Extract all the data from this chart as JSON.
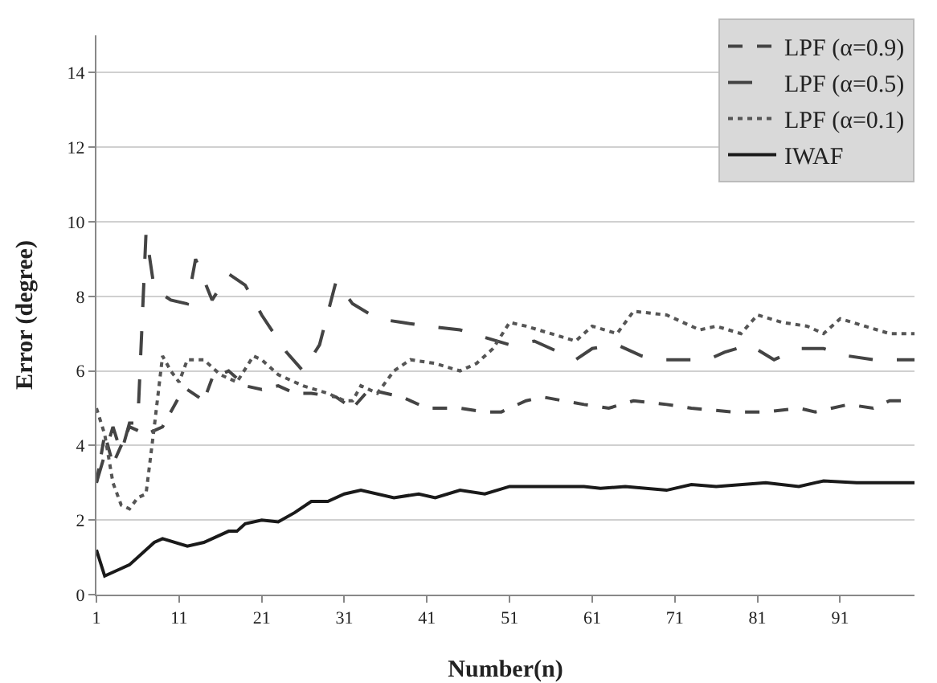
{
  "chart_data": {
    "type": "line",
    "xlabel": "Number(n)",
    "ylabel": "Error (degree)",
    "xlim": [
      1,
      100
    ],
    "xticks": [
      1,
      11,
      21,
      31,
      41,
      51,
      61,
      71,
      81,
      91
    ],
    "ylim": [
      0,
      15
    ],
    "yticks": [
      0,
      2,
      4,
      6,
      8,
      10,
      12,
      14
    ],
    "grid": "y",
    "legend": "top right",
    "marker": "none",
    "series": [
      {
        "name": "LPF (α=0.9)",
        "color": "#444444",
        "line_style": "dashed",
        "x": [
          1,
          2,
          3,
          5,
          7,
          9,
          11,
          12,
          14,
          15,
          17,
          19,
          21,
          23,
          25,
          27,
          30,
          32,
          34,
          36,
          38,
          41,
          45,
          48,
          50,
          53,
          55,
          60,
          63,
          66,
          70,
          73,
          78,
          82,
          86,
          88,
          92,
          95,
          97,
          100
        ],
        "values": [
          3.0,
          4.3,
          3.5,
          4.5,
          4.3,
          4.5,
          5.3,
          5.5,
          5.2,
          5.8,
          6.0,
          5.6,
          5.5,
          5.6,
          5.4,
          5.4,
          5.3,
          5.0,
          5.5,
          5.4,
          5.3,
          5.0,
          5.0,
          4.9,
          4.9,
          5.2,
          5.3,
          5.1,
          5.0,
          5.2,
          5.1,
          5.0,
          4.9,
          4.9,
          5.0,
          4.9,
          5.1,
          5.0,
          5.2,
          5.2
        ]
      },
      {
        "name": "LPF (α=0.5)",
        "color": "#444444",
        "line_style": "longdash",
        "x": [
          1,
          3,
          4,
          5,
          6,
          7,
          8,
          10,
          12,
          13,
          15,
          17,
          19,
          21,
          24,
          26,
          28,
          30,
          32,
          35,
          38,
          41,
          45,
          48,
          51,
          54,
          57,
          59,
          61,
          64,
          67,
          69,
          72,
          75,
          77,
          80,
          83,
          86,
          89,
          92,
          95,
          100
        ],
        "values": [
          3.0,
          4.5,
          3.8,
          4.6,
          4.6,
          9.7,
          8.2,
          7.9,
          7.8,
          9.0,
          7.9,
          8.6,
          8.3,
          7.5,
          6.5,
          6.0,
          6.7,
          8.4,
          7.8,
          7.4,
          7.3,
          7.2,
          7.1,
          6.9,
          6.7,
          6.8,
          6.5,
          6.3,
          6.6,
          6.7,
          6.4,
          6.3,
          6.3,
          6.3,
          6.5,
          6.7,
          6.3,
          6.6,
          6.6,
          6.4,
          6.3,
          6.3
        ]
      },
      {
        "name": "LPF (α=0.1)",
        "color": "#555555",
        "line_style": "dotted",
        "x": [
          1,
          2,
          3,
          4,
          5,
          6,
          7,
          8,
          9,
          10,
          11,
          12,
          14,
          16,
          18,
          20,
          21,
          23,
          26,
          29,
          31,
          32,
          33,
          35,
          37,
          39,
          42,
          45,
          47,
          49,
          51,
          53,
          56,
          59,
          61,
          64,
          66,
          70,
          74,
          76,
          79,
          81,
          84,
          87,
          89,
          91,
          94,
          97,
          100
        ],
        "values": [
          5.0,
          4.3,
          3.0,
          2.4,
          2.3,
          2.6,
          2.7,
          4.5,
          6.4,
          6.0,
          5.7,
          6.3,
          6.3,
          5.9,
          5.7,
          6.4,
          6.3,
          5.9,
          5.6,
          5.4,
          5.2,
          5.2,
          5.6,
          5.4,
          6.0,
          6.3,
          6.2,
          6.0,
          6.2,
          6.6,
          7.3,
          7.2,
          7.0,
          6.8,
          7.2,
          7.0,
          7.6,
          7.5,
          7.1,
          7.2,
          7.0,
          7.5,
          7.3,
          7.2,
          7.0,
          7.4,
          7.2,
          7.0,
          7.0
        ]
      },
      {
        "name": "IWAF",
        "color": "#1a1a1a",
        "line_style": "solid",
        "x": [
          1,
          2,
          4,
          5,
          8,
          9,
          12,
          14,
          17,
          18,
          19,
          21,
          23,
          25,
          27,
          29,
          31,
          33,
          37,
          40,
          42,
          45,
          48,
          51,
          60,
          62,
          65,
          70,
          73,
          76,
          82,
          86,
          89,
          93,
          100
        ],
        "values": [
          1.2,
          0.5,
          0.7,
          0.8,
          1.4,
          1.5,
          1.3,
          1.4,
          1.7,
          1.7,
          1.9,
          2.0,
          1.95,
          2.2,
          2.5,
          2.5,
          2.7,
          2.8,
          2.6,
          2.7,
          2.6,
          2.8,
          2.7,
          2.9,
          2.9,
          2.85,
          2.9,
          2.8,
          2.95,
          2.9,
          3.0,
          2.9,
          3.05,
          3.0,
          3.0
        ]
      }
    ]
  }
}
